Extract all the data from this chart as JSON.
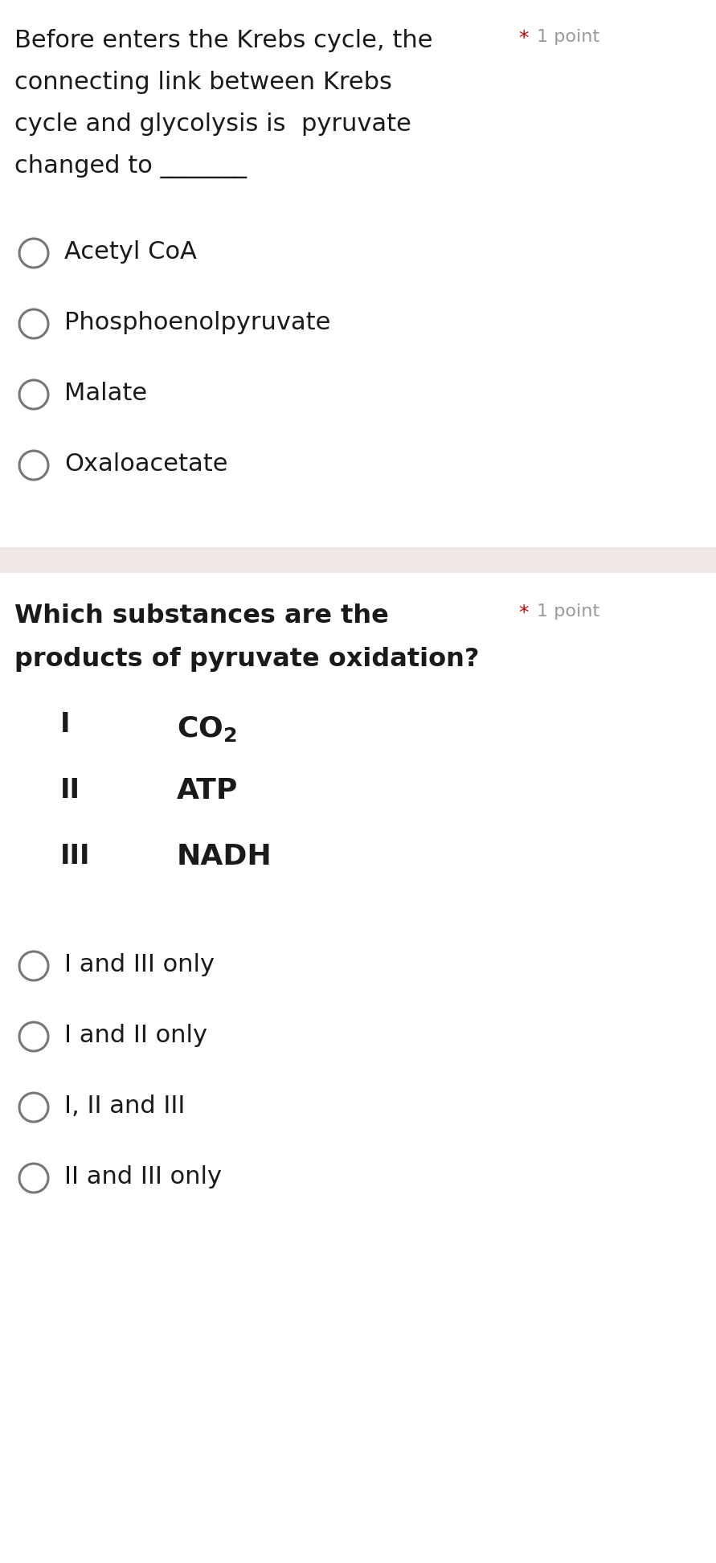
{
  "bg_color": "#ffffff",
  "separator_color": "#f0e8e4",
  "q1_text_lines": [
    "Before enters the Krebs cycle, the",
    "connecting link between Krebs",
    "cycle and glycolysis is  pyruvate",
    "changed to _______"
  ],
  "q1_point_star": "*",
  "q1_point_text": "1 point",
  "q1_options": [
    "Acetyl CoA",
    "Phosphoenolpyruvate",
    "Malate",
    "Oxaloacetate"
  ],
  "q2_text_lines": [
    "Which substances are the",
    "products of pyruvate oxidation?"
  ],
  "q2_point_star": "*",
  "q2_point_text": "1 point",
  "q2_table": [
    [
      "I",
      "CO₂"
    ],
    [
      "II",
      "ATP"
    ],
    [
      "III",
      "NADH"
    ]
  ],
  "q2_options": [
    "I and III only",
    "I and II only",
    "I, II and III",
    "II and III only"
  ],
  "star_color": "#cc0000",
  "point_color": "#999999",
  "text_color": "#1a1a1a",
  "option_text_color": "#1a1a1a",
  "circle_edge_color": "#777777",
  "circle_lw": 2.2,
  "q1_text_fontsize": 22,
  "q1_option_fontsize": 22,
  "q2_text_fontsize": 23,
  "q2_option_fontsize": 22,
  "q2_table_num_fontsize": 24,
  "q2_table_val_fontsize": 26,
  "point_fontsize": 16,
  "star_fontsize": 18
}
